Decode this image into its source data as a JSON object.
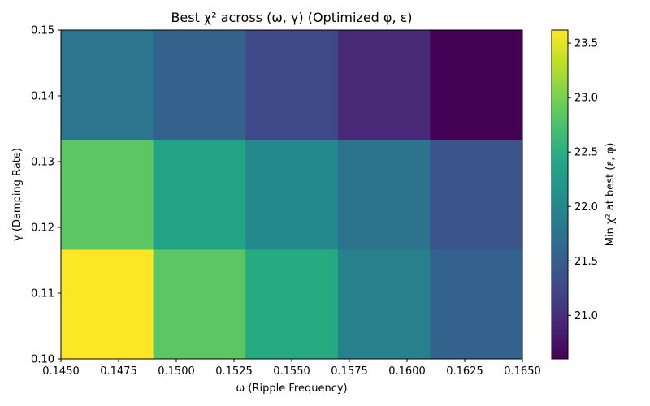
{
  "chart_data": {
    "type": "heatmap",
    "title": "Best χ² across (ω, γ) (Optimized φ, ε)",
    "xlabel": "ω (Ripple Frequency)",
    "ylabel": "γ (Damping Rate)",
    "colorbar_label": "Min χ² at best (ε, φ)",
    "colormap": "viridis",
    "xlim": [
      0.145,
      0.165
    ],
    "ylim": [
      0.1,
      0.15
    ],
    "x_edges": [
      0.145,
      0.149,
      0.153,
      0.157,
      0.161,
      0.165
    ],
    "y_edges": [
      0.1,
      0.11667,
      0.13333,
      0.15
    ],
    "values": [
      [
        23.62,
        22.85,
        22.45,
        21.92,
        21.55
      ],
      [
        22.85,
        22.35,
        22.0,
        21.75,
        21.38
      ],
      [
        21.78,
        21.55,
        21.25,
        20.95,
        20.6
      ]
    ],
    "clim": [
      20.6,
      23.62
    ],
    "x_ticks": [
      "0.1450",
      "0.1475",
      "0.1500",
      "0.1525",
      "0.1550",
      "0.1575",
      "0.1600",
      "0.1625",
      "0.1650"
    ],
    "x_tick_values": [
      0.145,
      0.1475,
      0.15,
      0.1525,
      0.155,
      0.1575,
      0.16,
      0.1625,
      0.165
    ],
    "y_ticks": [
      "0.10",
      "0.11",
      "0.12",
      "0.13",
      "0.14",
      "0.15"
    ],
    "y_tick_values": [
      0.1,
      0.11,
      0.12,
      0.13,
      0.14,
      0.15
    ],
    "colorbar_ticks": [
      "21.0",
      "21.5",
      "22.0",
      "22.5",
      "23.0",
      "23.5"
    ],
    "colorbar_tick_values": [
      21.0,
      21.5,
      22.0,
      22.5,
      23.0,
      23.5
    ]
  }
}
